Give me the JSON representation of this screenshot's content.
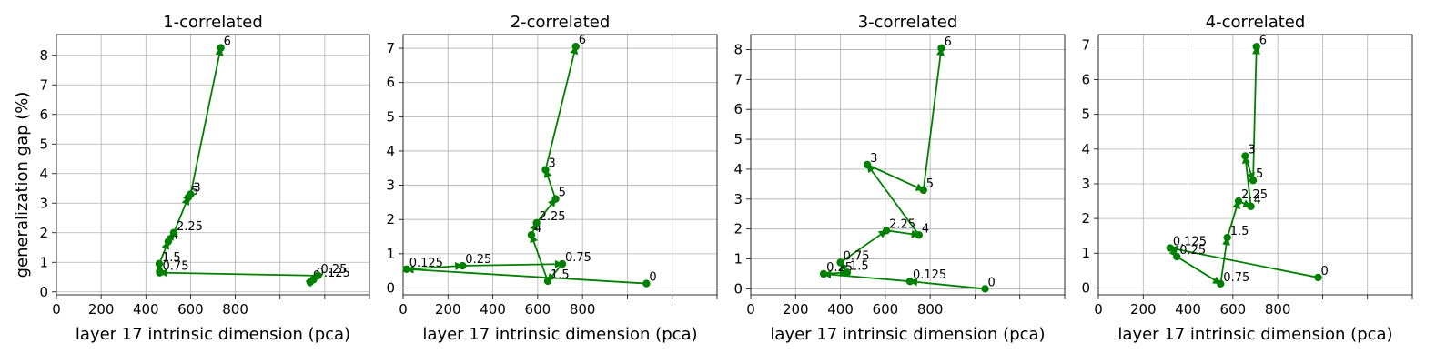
{
  "figure": {
    "ylabel": "generalization gap (%)",
    "xlabel": "layer 17 intrinsic dimension (pca)"
  },
  "chart_data": [
    {
      "type": "line",
      "title": "1-correlated",
      "xlabel": "layer 17 intrinsic dimension (pca)",
      "ylabel": "generalization gap (%)",
      "xlim": [
        0,
        1400
      ],
      "ylim": [
        -0.1,
        8.7
      ],
      "xticks": [
        0,
        200,
        400,
        600,
        800,
        1000,
        1200,
        1400
      ],
      "xtick_labels": [
        "0",
        "200",
        "400",
        "600",
        "800",
        "",
        "",
        ""
      ],
      "yticks": [
        0,
        1,
        2,
        3,
        4,
        5,
        6,
        7,
        8
      ],
      "ytick_labels": [
        "0",
        "1",
        "2",
        "3",
        "4",
        "5",
        "6",
        "7",
        "8"
      ],
      "grid": true,
      "color": "#008000",
      "points": [
        {
          "label": "0",
          "x": 1135,
          "y": 0.33
        },
        {
          "label": "0.125",
          "x": 1150,
          "y": 0.42
        },
        {
          "label": "0.25",
          "x": 1170,
          "y": 0.55
        },
        {
          "label": "0.75",
          "x": 462,
          "y": 0.65
        },
        {
          "label": "1.5",
          "x": 460,
          "y": 0.95
        },
        {
          "label": "4",
          "x": 500,
          "y": 1.7
        },
        {
          "label": "2.25",
          "x": 525,
          "y": 2.0
        },
        {
          "label": "5",
          "x": 590,
          "y": 3.2
        },
        {
          "label": "3",
          "x": 600,
          "y": 3.3
        },
        {
          "label": "6",
          "x": 735,
          "y": 8.25
        }
      ]
    },
    {
      "type": "line",
      "title": "2-correlated",
      "xlabel": "layer 17 intrinsic dimension (pca)",
      "ylabel": "",
      "xlim": [
        0,
        1400
      ],
      "ylim": [
        -0.2,
        7.4
      ],
      "xticks": [
        0,
        200,
        400,
        600,
        800,
        1000,
        1200,
        1400
      ],
      "xtick_labels": [
        "0",
        "200",
        "400",
        "600",
        "800",
        "",
        "",
        ""
      ],
      "yticks": [
        0,
        1,
        2,
        3,
        4,
        5,
        6,
        7
      ],
      "ytick_labels": [
        "0",
        "1",
        "2",
        "3",
        "4",
        "5",
        "6",
        "7"
      ],
      "grid": true,
      "color": "#008000",
      "points": [
        {
          "label": "0",
          "x": 1085,
          "y": 0.13
        },
        {
          "label": "0.125",
          "x": 15,
          "y": 0.55
        },
        {
          "label": "0.25",
          "x": 265,
          "y": 0.65
        },
        {
          "label": "0.75",
          "x": 710,
          "y": 0.7
        },
        {
          "label": "1.5",
          "x": 645,
          "y": 0.2
        },
        {
          "label": "4",
          "x": 572,
          "y": 1.55
        },
        {
          "label": "2.25",
          "x": 595,
          "y": 1.9
        },
        {
          "label": "5",
          "x": 680,
          "y": 2.6
        },
        {
          "label": "3",
          "x": 635,
          "y": 3.45
        },
        {
          "label": "6",
          "x": 770,
          "y": 7.05
        }
      ]
    },
    {
      "type": "line",
      "title": "3-correlated",
      "xlabel": "layer 17 intrinsic dimension (pca)",
      "ylabel": "",
      "xlim": [
        0,
        1400
      ],
      "ylim": [
        -0.2,
        8.5
      ],
      "xticks": [
        0,
        200,
        400,
        600,
        800,
        1000,
        1200,
        1400
      ],
      "xtick_labels": [
        "0",
        "200",
        "400",
        "600",
        "800",
        "",
        "",
        ""
      ],
      "yticks": [
        0,
        1,
        2,
        3,
        4,
        5,
        6,
        7,
        8
      ],
      "ytick_labels": [
        "0",
        "1",
        "2",
        "3",
        "4",
        "5",
        "6",
        "7",
        "8"
      ],
      "grid": true,
      "color": "#008000",
      "points": [
        {
          "label": "0",
          "x": 1045,
          "y": 0.0
        },
        {
          "label": "0.125",
          "x": 710,
          "y": 0.25
        },
        {
          "label": "0.25",
          "x": 325,
          "y": 0.5
        },
        {
          "label": "1.5",
          "x": 430,
          "y": 0.55
        },
        {
          "label": "0.75",
          "x": 400,
          "y": 0.88
        },
        {
          "label": "2.25",
          "x": 605,
          "y": 1.95
        },
        {
          "label": "4",
          "x": 750,
          "y": 1.8
        },
        {
          "label": "3",
          "x": 520,
          "y": 4.15
        },
        {
          "label": "5",
          "x": 770,
          "y": 3.3
        },
        {
          "label": "6",
          "x": 850,
          "y": 8.05
        }
      ]
    },
    {
      "type": "line",
      "title": "4-correlated",
      "xlabel": "layer 17 intrinsic dimension (pca)",
      "ylabel": "",
      "xlim": [
        0,
        1400
      ],
      "ylim": [
        -0.2,
        7.3
      ],
      "xticks": [
        0,
        200,
        400,
        600,
        800,
        1000,
        1200,
        1400
      ],
      "xtick_labels": [
        "0",
        "200",
        "400",
        "600",
        "800",
        "",
        "",
        ""
      ],
      "yticks": [
        0,
        1,
        2,
        3,
        4,
        5,
        6,
        7
      ],
      "ytick_labels": [
        "0",
        "1",
        "2",
        "3",
        "4",
        "5",
        "6",
        "7"
      ],
      "grid": true,
      "color": "#008000",
      "points": [
        {
          "label": "0",
          "x": 980,
          "y": 0.3
        },
        {
          "label": "0.125",
          "x": 320,
          "y": 1.15
        },
        {
          "label": "0.25",
          "x": 350,
          "y": 0.9
        },
        {
          "label": "0.75",
          "x": 545,
          "y": 0.12
        },
        {
          "label": "1.5",
          "x": 575,
          "y": 1.45
        },
        {
          "label": "2.25",
          "x": 625,
          "y": 2.5
        },
        {
          "label": "4",
          "x": 680,
          "y": 2.35
        },
        {
          "label": "3",
          "x": 655,
          "y": 3.8
        },
        {
          "label": "5",
          "x": 690,
          "y": 3.1
        },
        {
          "label": "6",
          "x": 705,
          "y": 6.95
        }
      ]
    }
  ]
}
